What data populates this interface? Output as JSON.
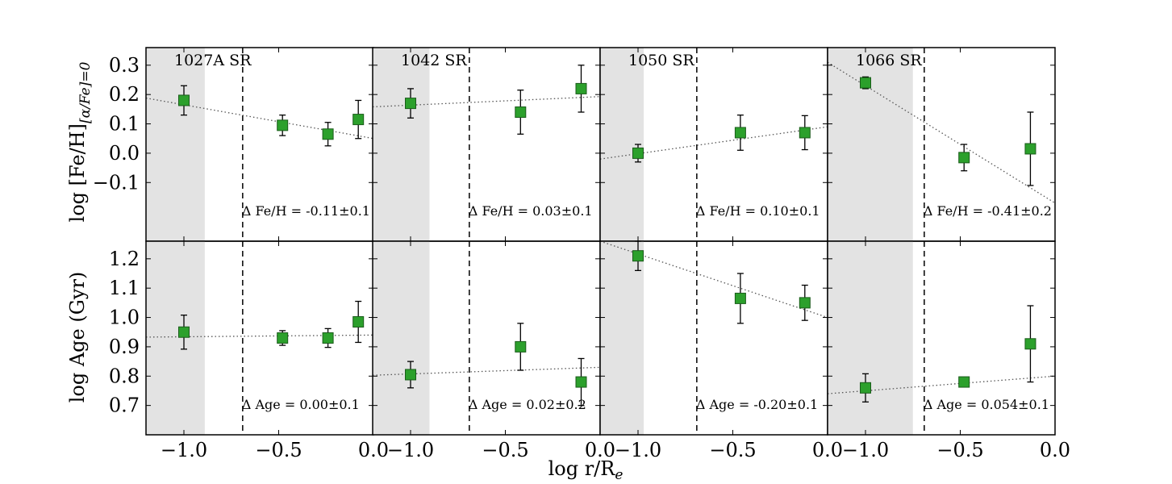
{
  "figure": {
    "xlabel": "log r/R",
    "xlabel_sub": "e",
    "ylabel_top": "log [Fe/H]",
    "ylabel_top_sub": "[α/Fe]=0",
    "ylabel_bottom": "log Age (Gyr)"
  },
  "chart_data": [
    {
      "type": "scatter",
      "row": 0,
      "col": 0,
      "title": "1027A SR",
      "xlim": [
        -1.2,
        0.0
      ],
      "ylim": [
        -0.3,
        0.36
      ],
      "yticks": [
        0.3,
        0.2,
        0.1,
        0.0,
        -0.1
      ],
      "ytick_labels": [
        "0.3",
        "0.2",
        "0.1",
        "0.0",
        "−0.1"
      ],
      "shade": [
        -1.2,
        -0.89
      ],
      "vline": -0.69,
      "x": [
        -1.0,
        -0.48,
        -0.24,
        -0.08
      ],
      "y": [
        0.18,
        0.095,
        0.065,
        0.115
      ],
      "yerr": [
        0.05,
        0.035,
        0.04,
        0.065
      ],
      "fit": {
        "x": [
          -1.2,
          0.0
        ],
        "y": [
          0.188,
          0.05
        ]
      },
      "annotation": "Δ Fe/H = -0.11±0.1"
    },
    {
      "type": "scatter",
      "row": 0,
      "col": 1,
      "title": "1042 SR",
      "xlim": [
        -1.2,
        0.0
      ],
      "ylim": [
        -0.3,
        0.36
      ],
      "shade": [
        -1.2,
        -0.9
      ],
      "vline": -0.69,
      "x": [
        -1.0,
        -0.42,
        -0.1
      ],
      "y": [
        0.17,
        0.14,
        0.22
      ],
      "yerr": [
        0.05,
        0.075,
        0.08
      ],
      "fit": {
        "x": [
          -1.2,
          0.0
        ],
        "y": [
          0.158,
          0.193
        ]
      },
      "annotation": "Δ Fe/H = 0.03±0.1"
    },
    {
      "type": "scatter",
      "row": 0,
      "col": 2,
      "title": "1050 SR",
      "xlim": [
        -1.2,
        0.0
      ],
      "ylim": [
        -0.3,
        0.36
      ],
      "shade": [
        -1.2,
        -0.97
      ],
      "vline": -0.69,
      "x": [
        -1.0,
        -0.46,
        -0.12
      ],
      "y": [
        0.0,
        0.07,
        0.07
      ],
      "yerr": [
        0.03,
        0.06,
        0.058
      ],
      "fit": {
        "x": [
          -1.2,
          0.0
        ],
        "y": [
          -0.02,
          0.09
        ]
      },
      "annotation": "Δ Fe/H = 0.10±0.1"
    },
    {
      "type": "scatter",
      "row": 0,
      "col": 3,
      "title": "1066 SR",
      "xlim": [
        -1.2,
        0.0
      ],
      "ylim": [
        -0.3,
        0.36
      ],
      "shade": [
        -1.2,
        -0.75
      ],
      "vline": -0.69,
      "x": [
        -1.0,
        -0.48,
        -0.13
      ],
      "y": [
        0.24,
        -0.015,
        0.015
      ],
      "yerr": [
        0.02,
        0.045,
        0.125
      ],
      "fit": {
        "x": [
          -1.2,
          0.0
        ],
        "y": [
          0.31,
          -0.17
        ]
      },
      "annotation": "Δ Fe/H = -0.41±0.2"
    },
    {
      "type": "scatter",
      "row": 1,
      "col": 0,
      "xlim": [
        -1.2,
        0.0
      ],
      "ylim": [
        0.6,
        1.26
      ],
      "yticks": [
        1.2,
        1.1,
        1.0,
        0.9,
        0.8,
        0.7
      ],
      "ytick_labels": [
        "1.2",
        "1.1",
        "1.0",
        "0.9",
        "0.8",
        "0.7"
      ],
      "xticks": [
        -1.0,
        -0.5,
        0.0
      ],
      "xtick_labels": [
        "−1.0",
        "−0.5",
        "0.0"
      ],
      "shade": [
        -1.2,
        -0.89
      ],
      "vline": -0.69,
      "x": [
        -1.0,
        -0.48,
        -0.24,
        -0.08
      ],
      "y": [
        0.95,
        0.93,
        0.93,
        0.985
      ],
      "yerr": [
        0.058,
        0.025,
        0.032,
        0.07
      ],
      "fit": {
        "x": [
          -1.2,
          0.0
        ],
        "y": [
          0.933,
          0.94
        ]
      },
      "annotation": "Δ Age = 0.00±0.1"
    },
    {
      "type": "scatter",
      "row": 1,
      "col": 1,
      "xlim": [
        -1.2,
        0.0
      ],
      "ylim": [
        0.6,
        1.26
      ],
      "xticks": [
        -1.0,
        -0.5,
        0.0
      ],
      "xtick_labels": [
        "−1.0",
        "−0.5",
        "0.0"
      ],
      "shade": [
        -1.2,
        -0.9
      ],
      "vline": -0.69,
      "x": [
        -1.0,
        -0.42,
        -0.1
      ],
      "y": [
        0.805,
        0.9,
        0.78
      ],
      "yerr": [
        0.045,
        0.08,
        0.08
      ],
      "fit": {
        "x": [
          -1.2,
          0.0
        ],
        "y": [
          0.803,
          0.83
        ]
      },
      "annotation": "Δ Age = 0.02±0.2"
    },
    {
      "type": "scatter",
      "row": 1,
      "col": 2,
      "xlim": [
        -1.2,
        0.0
      ],
      "ylim": [
        0.6,
        1.26
      ],
      "xticks": [
        -1.0,
        -0.5,
        0.0
      ],
      "xtick_labels": [
        "−1.0",
        "−0.5",
        "0.0"
      ],
      "shade": [
        -1.2,
        -0.97
      ],
      "vline": -0.69,
      "x": [
        -1.0,
        -0.46,
        -0.12
      ],
      "y": [
        1.21,
        1.065,
        1.05
      ],
      "yerr": [
        0.05,
        0.085,
        0.06
      ],
      "fit": {
        "x": [
          -1.2,
          0.0
        ],
        "y": [
          1.26,
          1.0
        ]
      },
      "annotation": "Δ Age = -0.20±0.1"
    },
    {
      "type": "scatter",
      "row": 1,
      "col": 3,
      "xlim": [
        -1.2,
        0.0
      ],
      "ylim": [
        0.6,
        1.26
      ],
      "xticks": [
        -1.0,
        -0.5,
        0.0
      ],
      "xtick_labels": [
        "−1.0",
        "−0.5",
        "0.0"
      ],
      "shade": [
        -1.2,
        -0.75
      ],
      "vline": -0.69,
      "x": [
        -1.0,
        -0.48,
        -0.13
      ],
      "y": [
        0.76,
        0.78,
        0.91
      ],
      "yerr": [
        0.048,
        0.01,
        0.13
      ],
      "fit": {
        "x": [
          -1.2,
          0.0
        ],
        "y": [
          0.74,
          0.8
        ]
      },
      "annotation": "Δ Age = 0.054±0.1"
    }
  ],
  "colors": {
    "marker_fill": "#2ca02c",
    "marker_edge": "#1a5c1a",
    "shade": "#e3e3e3",
    "fit_line": "#555555",
    "axis": "#000000"
  }
}
